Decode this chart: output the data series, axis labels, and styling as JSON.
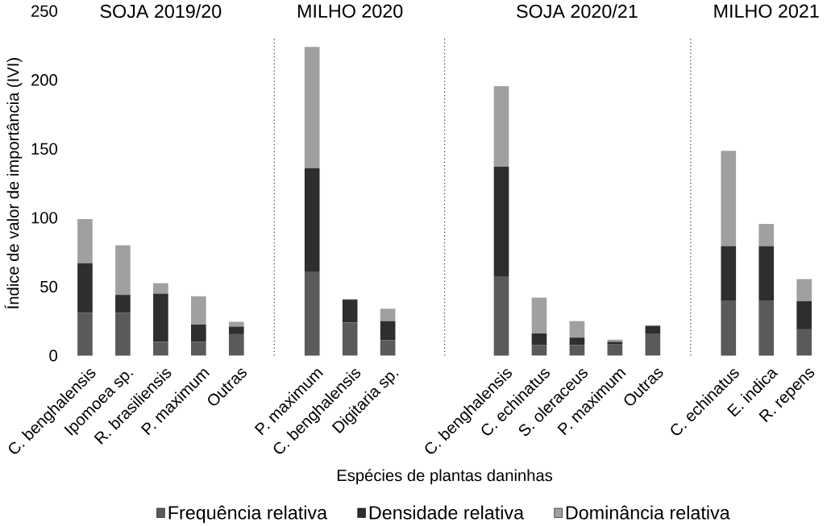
{
  "chart_data": {
    "type": "bar",
    "stacked": true,
    "xlabel": "Espécies de plantas daninhas",
    "ylabel": "Índice de valor de importância (IVI)",
    "categories": [
      "C. benghalensis",
      "Ipomoea sp.",
      "R. brasiliensis",
      "P. maximum",
      "Outras",
      null,
      "P. maximum",
      "C. benghalensis",
      "Digitaria sp.",
      null,
      null,
      "C. benghalensis",
      "C. echinatus",
      "S. oleraceus",
      "P. maximum",
      "Outras",
      null,
      "C. echinatus",
      "E. indica",
      "R. repens"
    ],
    "series": [
      {
        "name": "Frequência relativa",
        "color": "#5a5a5a",
        "values": [
          31,
          31,
          10,
          10,
          15.5,
          null,
          61,
          24,
          11,
          null,
          null,
          57.5,
          7.5,
          7.5,
          8,
          16,
          null,
          39.5,
          39.5,
          19
        ]
      },
      {
        "name": "Densidade relativa",
        "color": "#2e2e2e",
        "values": [
          36,
          13,
          35,
          12.5,
          5.5,
          null,
          75,
          16.5,
          14,
          null,
          null,
          79.5,
          8.5,
          5.5,
          2,
          5.5,
          null,
          40,
          40,
          20.5
        ]
      },
      {
        "name": "Dominância relativa",
        "color": "#a0a0a0",
        "values": [
          32,
          36,
          7.5,
          20.5,
          3.5,
          null,
          88,
          0.5,
          9,
          null,
          null,
          58.5,
          26,
          12,
          1.5,
          0.5,
          null,
          69,
          16,
          16
        ]
      }
    ],
    "ylim": [
      0,
      250
    ],
    "yticks": [
      0,
      50,
      100,
      150,
      200,
      250
    ],
    "legend": "bottom",
    "annotations": [
      "SOJA 2019/20",
      "MILHO 2020",
      "SOJA 2020/21",
      "MILHO 2021"
    ]
  }
}
